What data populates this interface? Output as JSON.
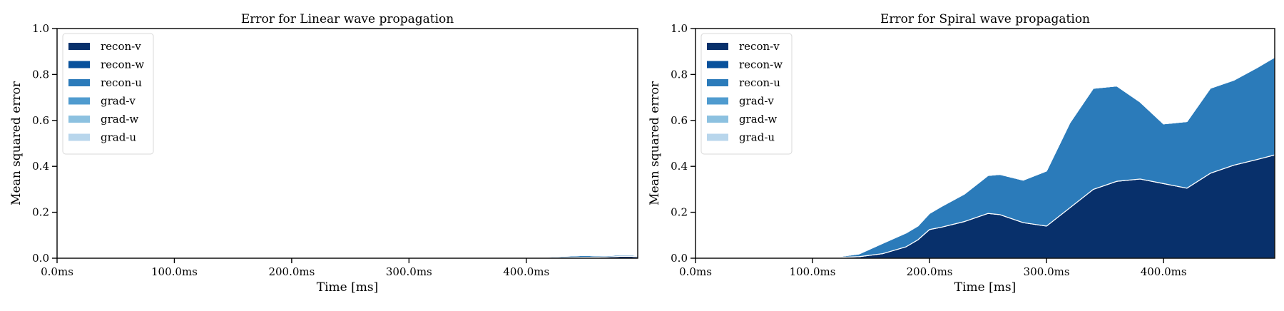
{
  "colors": {
    "recon-v": "#08306b",
    "recon-w": "#08519c",
    "recon-u": "#2b7bba",
    "grad-v": "#4f9bcf",
    "grad-w": "#8cc1e0",
    "grad-u": "#b8d6ec"
  },
  "chart_data": [
    {
      "type": "area",
      "stacked": true,
      "title": "Error for Linear wave propagation",
      "xlabel": "Time [ms]",
      "ylabel": "Mean squared error",
      "xlim": [
        0,
        495
      ],
      "ylim": [
        0,
        1
      ],
      "x_ticks": [
        {
          "value": 0,
          "label": "0.0ms"
        },
        {
          "value": 100,
          "label": "100.0ms"
        },
        {
          "value": 200,
          "label": "200.0ms"
        },
        {
          "value": 300,
          "label": "300.0ms"
        },
        {
          "value": 400,
          "label": "400.0ms"
        }
      ],
      "y_ticks": [
        {
          "value": 0,
          "label": "0.0"
        },
        {
          "value": 0.2,
          "label": "0.2"
        },
        {
          "value": 0.4,
          "label": "0.4"
        },
        {
          "value": 0.6,
          "label": "0.6"
        },
        {
          "value": 0.8,
          "label": "0.8"
        },
        {
          "value": 1.0,
          "label": "1.0"
        }
      ],
      "legend": "top-left",
      "x": [
        0,
        50,
        100,
        150,
        200,
        220,
        230,
        240,
        250,
        260,
        300,
        350,
        400,
        420,
        440,
        450,
        460,
        470,
        480,
        490,
        495
      ],
      "series": [
        {
          "name": "recon-v",
          "values": [
            0,
            0,
            0,
            0,
            0,
            0,
            0.001,
            0.002,
            0.001,
            0,
            0,
            0,
            0.001,
            0.002,
            0.003,
            0.004,
            0.004,
            0.006,
            0.008,
            0.008,
            0.007
          ]
        },
        {
          "name": "recon-w",
          "values": [
            0,
            0,
            0,
            0,
            0,
            0,
            0,
            0,
            0,
            0,
            0,
            0,
            0,
            0,
            0,
            0,
            0,
            0,
            0,
            0,
            0
          ]
        },
        {
          "name": "recon-u",
          "values": [
            0,
            0,
            0,
            0,
            0,
            0,
            0.002,
            0.003,
            0.001,
            0,
            0,
            0,
            0.002,
            0.004,
            0.007,
            0.008,
            0.006,
            0.005,
            0.006,
            0.005,
            0.004
          ]
        },
        {
          "name": "grad-v",
          "values": [
            0,
            0,
            0,
            0,
            0,
            0,
            0,
            0,
            0,
            0,
            0,
            0,
            0,
            0,
            0,
            0,
            0,
            0,
            0,
            0,
            0
          ]
        },
        {
          "name": "grad-w",
          "values": [
            0,
            0,
            0,
            0,
            0,
            0,
            0,
            0,
            0,
            0,
            0,
            0,
            0,
            0,
            0,
            0,
            0,
            0,
            0,
            0,
            0
          ]
        },
        {
          "name": "grad-u",
          "values": [
            0,
            0,
            0,
            0,
            0,
            0,
            0,
            0,
            0,
            0,
            0,
            0,
            0,
            0,
            0,
            0,
            0,
            0,
            0,
            0,
            0
          ]
        }
      ]
    },
    {
      "type": "area",
      "stacked": true,
      "title": "Error for Spiral wave propagation",
      "xlabel": "Time [ms]",
      "ylabel": "Mean squared error",
      "xlim": [
        0,
        495
      ],
      "ylim": [
        0,
        1
      ],
      "x_ticks": [
        {
          "value": 0,
          "label": "0.0ms"
        },
        {
          "value": 100,
          "label": "100.0ms"
        },
        {
          "value": 200,
          "label": "200.0ms"
        },
        {
          "value": 300,
          "label": "300.0ms"
        },
        {
          "value": 400,
          "label": "400.0ms"
        }
      ],
      "y_ticks": [
        {
          "value": 0,
          "label": "0.0"
        },
        {
          "value": 0.2,
          "label": "0.2"
        },
        {
          "value": 0.4,
          "label": "0.4"
        },
        {
          "value": 0.6,
          "label": "0.6"
        },
        {
          "value": 0.8,
          "label": "0.8"
        },
        {
          "value": 1.0,
          "label": "1.0"
        }
      ],
      "legend": "top-left",
      "x": [
        0,
        100,
        120,
        140,
        160,
        180,
        190,
        200,
        210,
        230,
        250,
        260,
        280,
        300,
        320,
        340,
        360,
        380,
        400,
        420,
        440,
        460,
        480,
        495
      ],
      "series": [
        {
          "name": "recon-v",
          "values": [
            0,
            0,
            0.003,
            0.007,
            0.02,
            0.05,
            0.08,
            0.125,
            0.135,
            0.16,
            0.195,
            0.19,
            0.155,
            0.14,
            0.22,
            0.3,
            0.335,
            0.345,
            0.325,
            0.305,
            0.37,
            0.405,
            0.43,
            0.45
          ]
        },
        {
          "name": "recon-w",
          "values": [
            0,
            0,
            0,
            0,
            0,
            0,
            0,
            0,
            0,
            0,
            0,
            0,
            0,
            0,
            0,
            0,
            0,
            0,
            0,
            0,
            0,
            0,
            0,
            0
          ]
        },
        {
          "name": "recon-u",
          "values": [
            0,
            0,
            0.002,
            0.012,
            0.045,
            0.06,
            0.06,
            0.07,
            0.09,
            0.12,
            0.165,
            0.175,
            0.185,
            0.24,
            0.37,
            0.44,
            0.415,
            0.335,
            0.26,
            0.29,
            0.37,
            0.37,
            0.4,
            0.425
          ]
        },
        {
          "name": "grad-v",
          "values": [
            0,
            0,
            0,
            0,
            0,
            0,
            0,
            0,
            0,
            0,
            0,
            0,
            0,
            0,
            0,
            0,
            0,
            0,
            0,
            0,
            0,
            0,
            0,
            0
          ]
        },
        {
          "name": "grad-w",
          "values": [
            0,
            0,
            0,
            0,
            0,
            0,
            0,
            0,
            0,
            0,
            0,
            0,
            0,
            0,
            0,
            0,
            0,
            0,
            0,
            0,
            0,
            0,
            0,
            0
          ]
        },
        {
          "name": "grad-u",
          "values": [
            0,
            0,
            0,
            0,
            0,
            0,
            0,
            0,
            0,
            0,
            0,
            0,
            0,
            0,
            0,
            0,
            0,
            0,
            0,
            0,
            0,
            0,
            0,
            0
          ]
        }
      ]
    }
  ]
}
